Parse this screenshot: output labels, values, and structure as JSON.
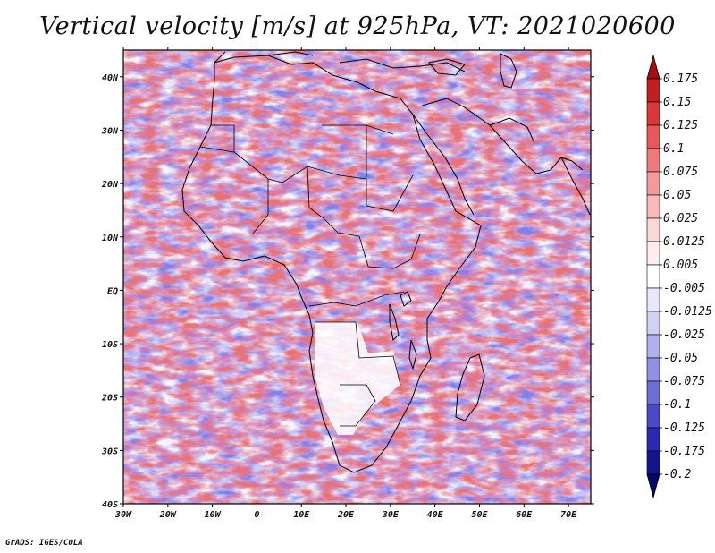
{
  "title": "Vertical velocity [m/s] at 925hPa, VT: 2021020600",
  "credit": "GrADS: IGES/COLA",
  "map": {
    "lon_labels": [
      "30W",
      "20W",
      "10W",
      "0",
      "10E",
      "20E",
      "30E",
      "40E",
      "50E",
      "60E",
      "70E"
    ],
    "lat_labels": [
      "40N",
      "30N",
      "20N",
      "10N",
      "EQ",
      "10S",
      "20S",
      "30S",
      "40S"
    ],
    "lon_range": [
      -30,
      75
    ],
    "lat_range": [
      -40,
      45
    ]
  },
  "colorbar": {
    "levels": [
      "0.175",
      "0.15",
      "0.125",
      "0.1",
      "0.075",
      "0.05",
      "0.025",
      "0.0125",
      "0.005",
      "-0.005",
      "-0.0125",
      "-0.025",
      "-0.05",
      "-0.075",
      "-0.1",
      "-0.125",
      "-0.175",
      "-0.2"
    ],
    "colors": [
      "#a01010",
      "#c02020",
      "#d83838",
      "#e85858",
      "#f07a7a",
      "#f59a9a",
      "#f8baba",
      "#fbd8d8",
      "#fdeeee",
      "#ffffff",
      "#e8e8fb",
      "#d0d0f5",
      "#b0b0ee",
      "#9090e6",
      "#6d6dd8",
      "#4a4ac8",
      "#2a2ab0",
      "#14148f",
      "#05056a"
    ]
  }
}
